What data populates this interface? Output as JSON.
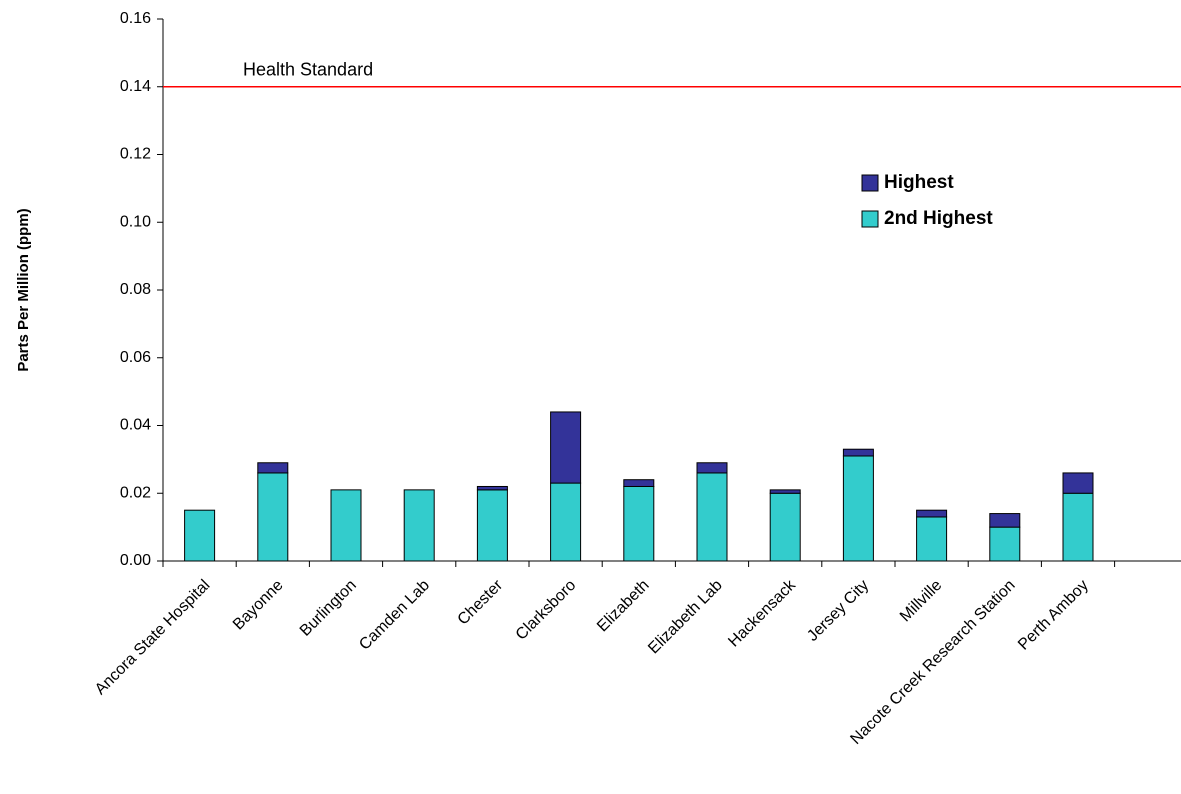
{
  "chart_data": {
    "type": "stacked_bar",
    "y_label": "Parts Per Million (ppm)",
    "categories": [
      "Ancora State Hospital",
      "Bayonne",
      "Burlington",
      "Camden Lab",
      "Chester",
      "Clarksboro",
      "Elizabeth",
      "Elizabeth Lab",
      "Hackensack",
      "Jersey City",
      "Millville",
      "Nacote Creek Research Station",
      "Perth Amboy",
      null
    ],
    "series": [
      {
        "name": "2nd Highest",
        "color": "#33cccc",
        "values": [
          0.015,
          0.026,
          0.021,
          0.021,
          0.021,
          0.023,
          0.022,
          0.026,
          0.02,
          0.031,
          0.013,
          0.01,
          0.02,
          null
        ]
      },
      {
        "name": "Highest",
        "color": "#333399",
        "values": [
          0,
          0.003,
          0,
          0,
          0.001,
          0.021,
          0.002,
          0.003,
          0.001,
          0.002,
          0.002,
          0.004,
          0.006,
          null
        ]
      }
    ],
    "ylim": [
      0,
      0.16
    ],
    "yticks": [
      {
        "value": 0,
        "label": "0.00"
      },
      0.02,
      0.04,
      0.06,
      0.08,
      {
        "value": 0.1,
        "label": "0.10"
      },
      0.12,
      0.14,
      0.16
    ],
    "reference_line": {
      "value": 0.14,
      "label": "Health Standard",
      "color": "#ff0000"
    },
    "legend_position": "upper right",
    "grid": false
  }
}
